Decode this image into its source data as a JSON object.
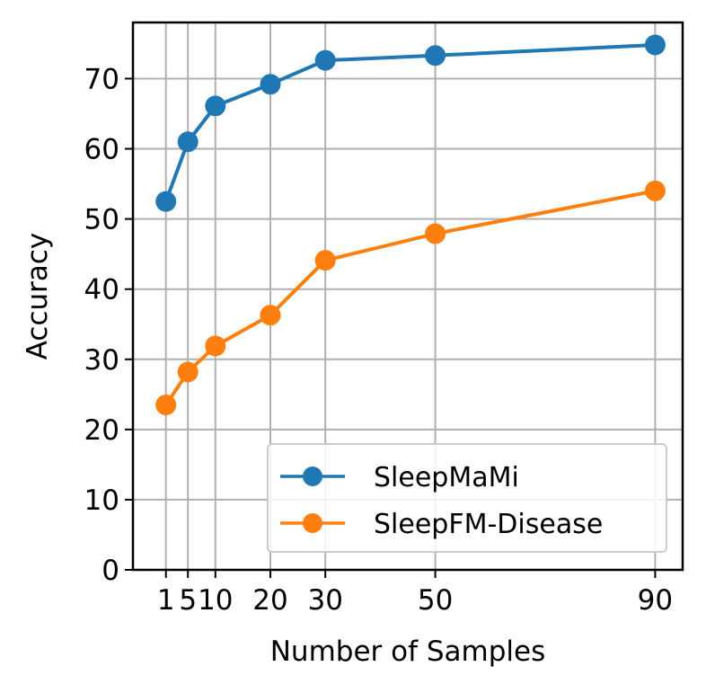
{
  "chart_data": {
    "type": "line",
    "title": "",
    "xlabel": "Number of Samples",
    "ylabel": "Accuracy",
    "x": [
      1,
      5,
      10,
      20,
      30,
      50,
      90
    ],
    "x_tick_labels": [
      "1",
      "5",
      "10",
      "20",
      "30",
      "50",
      "90"
    ],
    "y_ticks": [
      0,
      10,
      20,
      30,
      40,
      50,
      60,
      70
    ],
    "y_tick_labels": [
      "0",
      "10",
      "20",
      "30",
      "40",
      "50",
      "60",
      "70"
    ],
    "xlim": [
      -5,
      95
    ],
    "ylim": [
      0,
      78
    ],
    "grid": true,
    "legend_position": "lower-right",
    "series": [
      {
        "name": "SleepMaMi",
        "color": "#1f77b4",
        "marker": "circle",
        "values": [
          52.5,
          61.0,
          66.1,
          69.2,
          72.6,
          73.3,
          74.8
        ]
      },
      {
        "name": "SleepFM-Disease",
        "color": "#ff7f0e",
        "marker": "circle",
        "values": [
          23.5,
          28.2,
          31.9,
          36.3,
          44.1,
          47.9,
          54.0
        ]
      }
    ]
  }
}
